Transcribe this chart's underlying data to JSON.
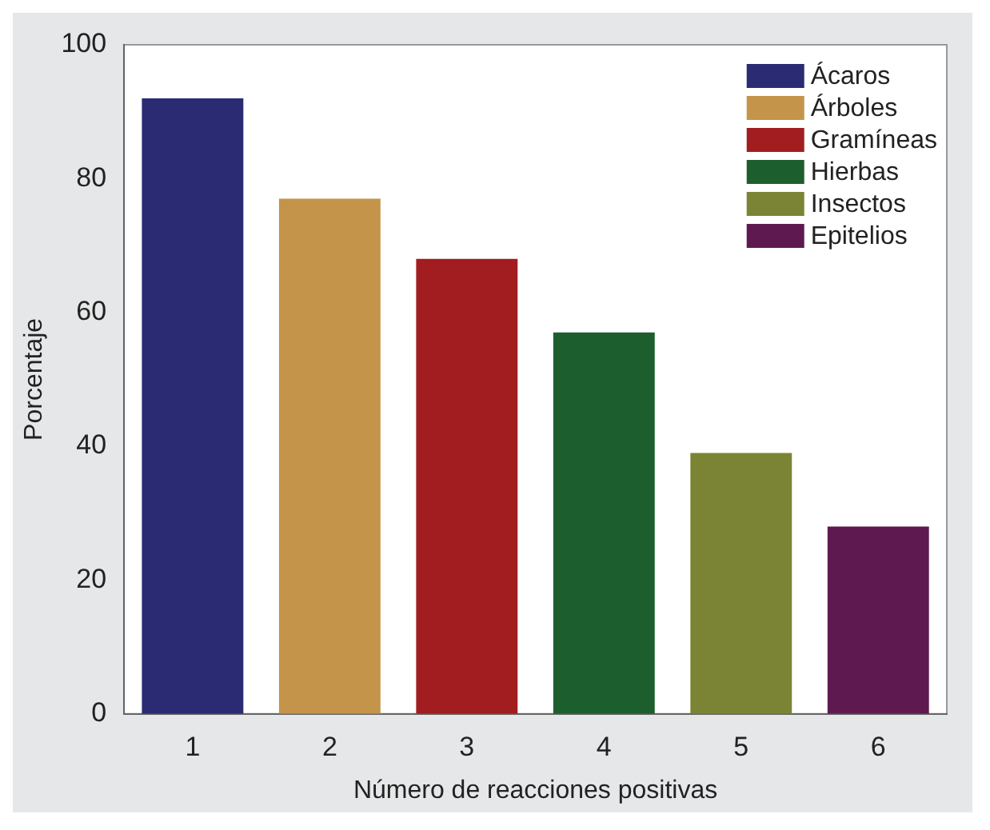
{
  "chart_data": {
    "type": "bar",
    "xlabel": "Número de reacciones positivas",
    "ylabel": "Porcentaje",
    "categories": [
      "1",
      "2",
      "3",
      "4",
      "5",
      "6"
    ],
    "series": [
      {
        "name": "Ácaros",
        "color": "#2b2b73",
        "values": [
          92,
          null,
          null,
          null,
          null,
          null
        ]
      },
      {
        "name": "Árboles",
        "color": "#c4944a",
        "values": [
          null,
          77,
          null,
          null,
          null,
          null
        ]
      },
      {
        "name": "Gramíneas",
        "color": "#a11d20",
        "values": [
          null,
          null,
          68,
          null,
          null,
          null
        ]
      },
      {
        "name": "Hierbas",
        "color": "#1d5e2e",
        "values": [
          null,
          null,
          null,
          57,
          null,
          null
        ]
      },
      {
        "name": "Insectos",
        "color": "#7b8434",
        "values": [
          null,
          null,
          null,
          null,
          39,
          null
        ]
      },
      {
        "name": "Epitelios",
        "color": "#5e1a50",
        "values": [
          null,
          null,
          null,
          null,
          null,
          28
        ]
      }
    ],
    "ylim": [
      0,
      100
    ],
    "yticks": [
      0,
      20,
      40,
      60,
      80,
      100
    ],
    "legend": "top right"
  }
}
